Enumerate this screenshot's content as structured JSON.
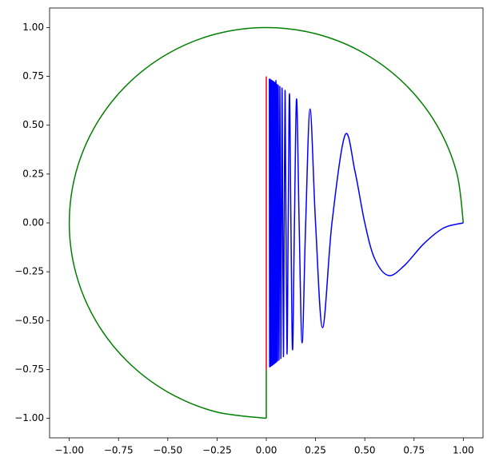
{
  "chart_data": {
    "type": "line",
    "xlim": [
      -1.1,
      1.1
    ],
    "ylim": [
      -1.1,
      1.1
    ],
    "xticks": [
      {
        "value": -1,
        "label": "−1.00"
      },
      {
        "value": -0.75,
        "label": "−0.75"
      },
      {
        "value": -0.5,
        "label": "−0.50"
      },
      {
        "value": -0.25,
        "label": "−0.25"
      },
      {
        "value": 0,
        "label": "0.00"
      },
      {
        "value": 0.25,
        "label": "0.25"
      },
      {
        "value": 0.5,
        "label": "0.50"
      },
      {
        "value": 0.75,
        "label": "0.75"
      },
      {
        "value": 1,
        "label": "1.00"
      }
    ],
    "yticks": [
      {
        "value": -1,
        "label": "−1.00"
      },
      {
        "value": -0.75,
        "label": "−0.75"
      },
      {
        "value": -0.5,
        "label": "−0.50"
      },
      {
        "value": -0.25,
        "label": "−0.25"
      },
      {
        "value": 0,
        "label": "0.00"
      },
      {
        "value": 0.25,
        "label": "0.25"
      },
      {
        "value": 0.5,
        "label": "0.50"
      },
      {
        "value": 0.75,
        "label": "0.75"
      },
      {
        "value": 1,
        "label": "1.00"
      }
    ],
    "grid": false,
    "series": [
      {
        "color": "#008000",
        "x": [
          1,
          0.966,
          0.866,
          0.707,
          0.5,
          0.259,
          0,
          -0.259,
          -0.5,
          -0.707,
          -0.866,
          -0.966,
          -1,
          -0.966,
          -0.866,
          -0.707,
          -0.5,
          -0.259,
          0
        ],
        "values": [
          0,
          0.259,
          0.5,
          0.707,
          0.866,
          0.966,
          1,
          0.966,
          0.866,
          0.707,
          0.5,
          0.259,
          0,
          -0.259,
          -0.5,
          -0.707,
          -0.866,
          -0.966,
          -1
        ]
      },
      {
        "color": "#008000",
        "x": [
          0,
          0
        ],
        "values": [
          -1,
          -0.75
        ]
      },
      {
        "color": "#ff0000",
        "x": [
          0,
          0
        ],
        "values": [
          -0.75,
          0.75
        ]
      },
      {
        "color": "#0000ff",
        "x": [
          1,
          0.9,
          0.8,
          0.7,
          0.62,
          0.55,
          0.5,
          0.45,
          0.4,
          0.3333,
          0.2857,
          0.25,
          0.2222,
          0.2,
          0.1818,
          0.1667,
          0.1538,
          0.1429,
          0.1333,
          0.125,
          0.1176,
          0.1111,
          0.1053,
          0.1,
          0.0952,
          0.0909,
          0.087,
          0.0833,
          0.08,
          0.0769,
          0.0741,
          0.0714,
          0.069,
          0.0667,
          0.0645,
          0.0625,
          0.0606,
          0.0588,
          0.0571,
          0.0556,
          0.0541,
          0.0526,
          0.0513,
          0.05,
          0.0488,
          0.0465,
          0.0444,
          0.0426,
          0.0408,
          0.0392,
          0.0377,
          0.0364,
          0.0351,
          0.0339,
          0.0328,
          0.0317,
          0.0308,
          0.0299,
          0.029,
          0.0282,
          0.0274,
          0.0267,
          0.026,
          0.0253,
          0.0247,
          0.0215,
          0.019,
          0.017,
          0.0155
        ],
        "values": [
          0,
          -0.026,
          -0.106,
          -0.219,
          -0.269,
          -0.183,
          0,
          0.265,
          0.45,
          0,
          -0.536,
          0,
          0.583,
          0,
          -0.614,
          0,
          0.635,
          0,
          -0.65,
          0,
          0.662,
          0,
          -0.671,
          0,
          0.679,
          0,
          -0.685,
          0,
          0.69,
          0,
          -0.694,
          0,
          0.698,
          0,
          -0.702,
          0,
          0.705,
          0,
          -0.707,
          0,
          0.709,
          0,
          -0.712,
          0,
          0.713,
          -0.715,
          0.717,
          -0.718,
          0.719,
          -0.721,
          0.722,
          -0.723,
          0.724,
          -0.725,
          0.725,
          -0.726,
          0.727,
          -0.728,
          0.728,
          -0.729,
          0.729,
          -0.73,
          0.73,
          -0.731,
          0.731,
          -0.734,
          0.736,
          -0.737,
          0.738
        ]
      }
    ]
  }
}
